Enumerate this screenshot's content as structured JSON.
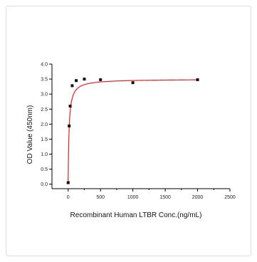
{
  "chart_data": {
    "type": "scatter",
    "title": "",
    "xlabel": "Recombinant Human LTBR Conc.(ng/mL)",
    "ylabel": "OD Value (450nm)",
    "xlim": [
      -250,
      2500
    ],
    "ylim": [
      -0.15,
      4.0
    ],
    "x_ticks": [
      0,
      500,
      1000,
      1500,
      2000,
      2500
    ],
    "y_ticks": [
      0.0,
      0.5,
      1.0,
      1.5,
      2.0,
      2.5,
      3.0,
      3.5,
      4.0
    ],
    "x_tick_labels": [
      "0",
      "500",
      "1000",
      "1500",
      "2000",
      "2500"
    ],
    "y_tick_labels": [
      "0.0",
      "0.5",
      "1.0",
      "1.5",
      "2.0",
      "2.5",
      "3.0",
      "3.5",
      "4.0"
    ],
    "grid": false,
    "series": [
      {
        "marker": "square",
        "color": "#111111",
        "x": [
          0,
          15.6,
          31.25,
          62.5,
          125,
          250,
          500,
          1000,
          2000
        ],
        "y": [
          0.05,
          1.94,
          2.6,
          3.28,
          3.45,
          3.5,
          3.48,
          3.38,
          3.48
        ]
      }
    ],
    "fit_curve": {
      "type": "hyperbolic",
      "color": "#e02020",
      "bmax": 3.5,
      "kd": 14
    }
  }
}
